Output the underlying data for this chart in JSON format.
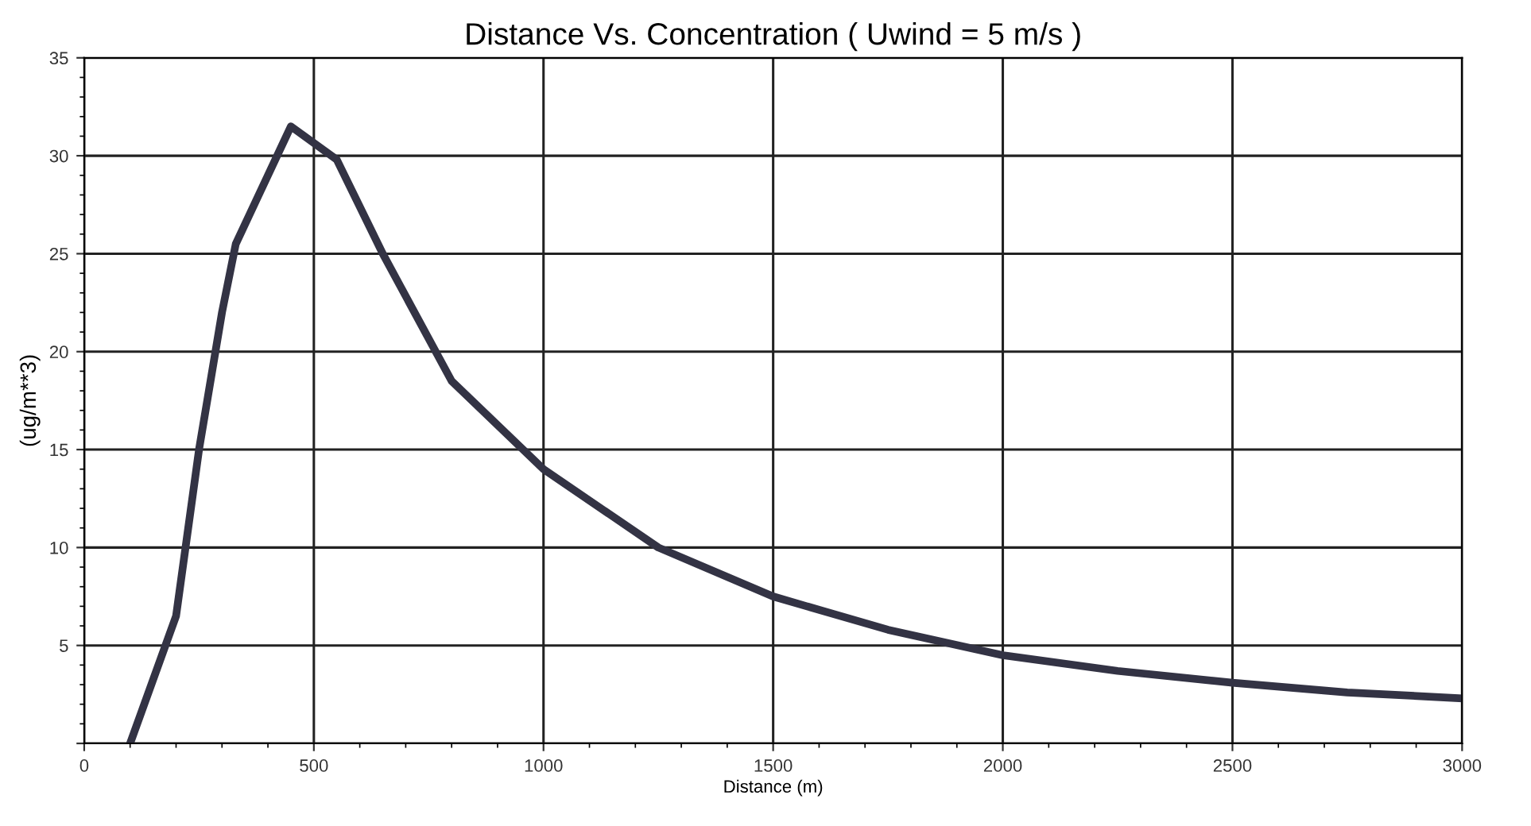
{
  "chart_data": {
    "type": "line",
    "title": "Distance Vs. Concentration ( Uwind = 5 m/s )",
    "xlabel": "Distance (m)",
    "ylabel": "(ug/m**3)",
    "x": [
      100,
      200,
      250,
      300,
      330,
      450,
      550,
      650,
      800,
      1000,
      1250,
      1500,
      1750,
      2000,
      2250,
      2500,
      2750,
      3000
    ],
    "series": [
      {
        "color": "#333344",
        "values": [
          0,
          6.5,
          15,
          22,
          25.5,
          31.5,
          29.8,
          25,
          18.5,
          14,
          10,
          7.5,
          5.8,
          4.5,
          3.7,
          3.1,
          2.6,
          2.3
        ]
      }
    ],
    "xlim": [
      0,
      3000
    ],
    "ylim": [
      0,
      35
    ],
    "xticks": [
      0,
      500,
      1000,
      1500,
      2000,
      2500,
      3000
    ],
    "yticks": [
      {
        "value": 0,
        "label": null
      },
      5,
      10,
      15,
      20,
      25,
      30,
      35
    ],
    "grid": true,
    "marker": "none",
    "line_style": "solid"
  }
}
